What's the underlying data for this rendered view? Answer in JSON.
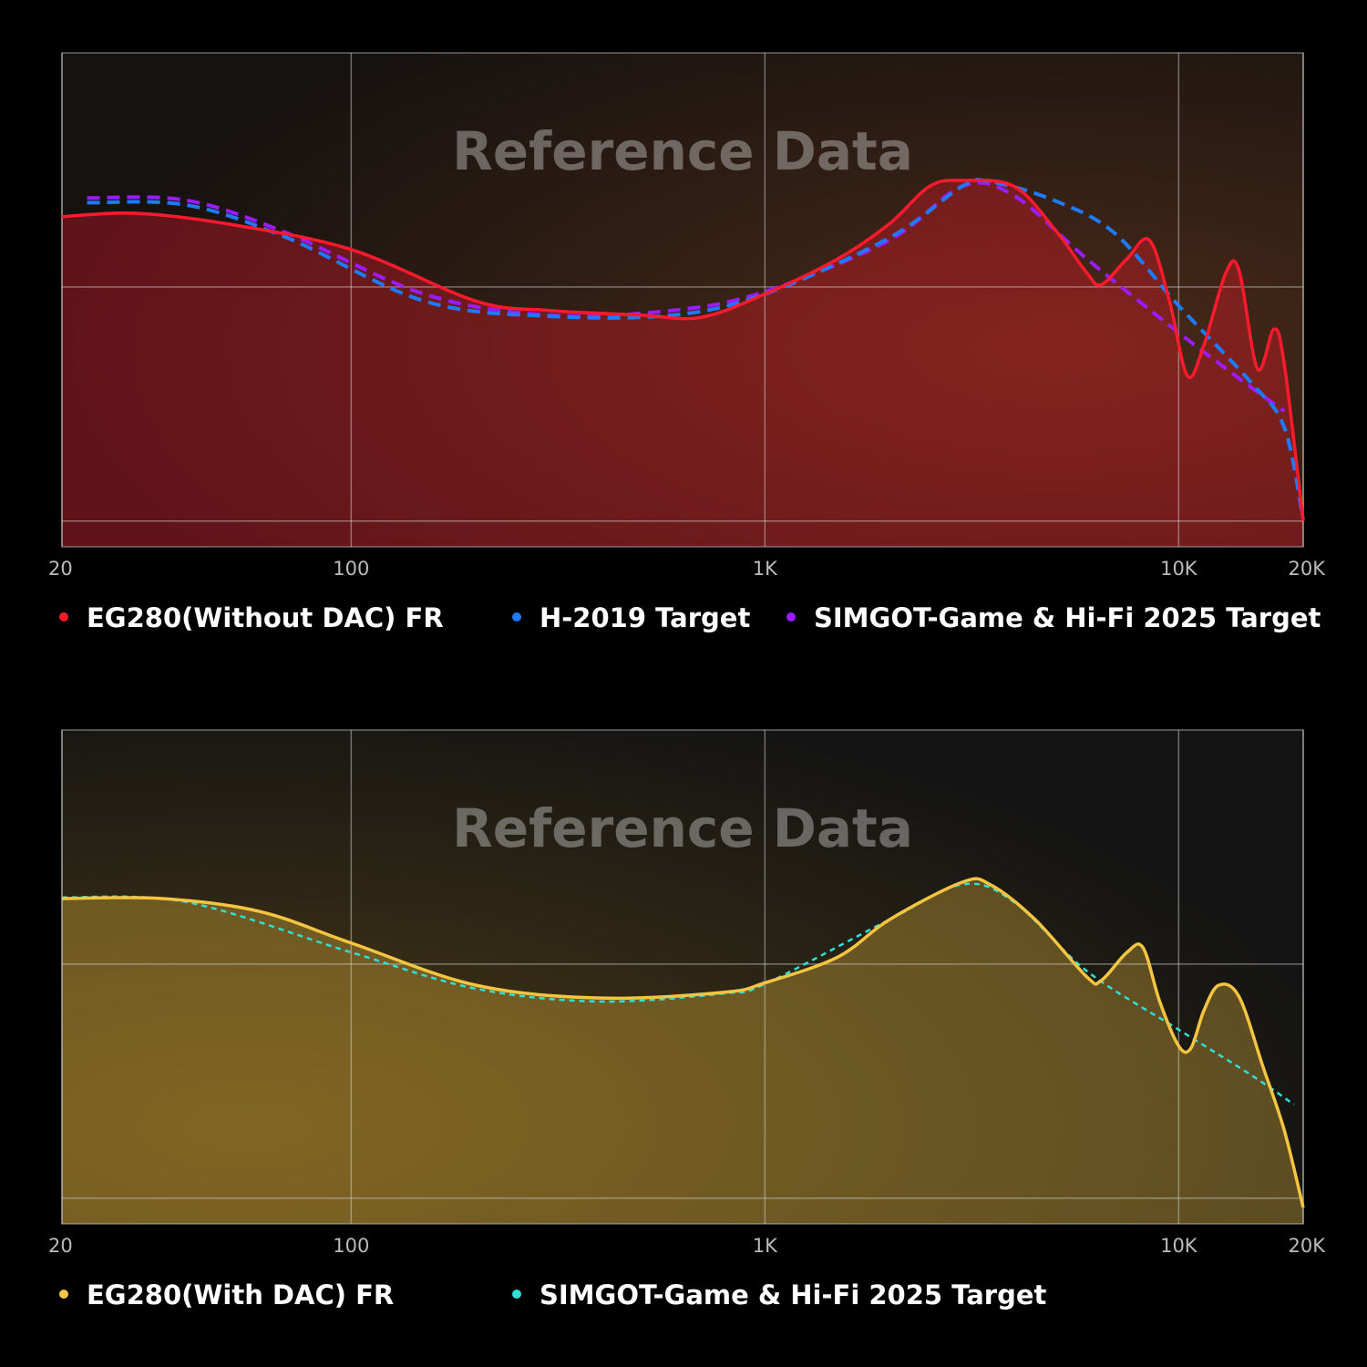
{
  "chart_data": [
    {
      "type": "line",
      "watermark": "Reference Data",
      "xscale": "log",
      "xlim": [
        20,
        20000
      ],
      "ylim": [
        -1.1,
        20
      ],
      "xticks": [
        20,
        100,
        {
          "value": 1000,
          "label": "1K"
        },
        {
          "value": 10000,
          "label": "10K"
        },
        {
          "value": 20000,
          "label": "20K"
        }
      ],
      "yticks": [
        0,
        10
      ],
      "grid": true,
      "series": [
        {
          "name": "EG280(Without DAC) FR",
          "color": "#ff1a2e",
          "dashed": false,
          "area": true,
          "x": [
            20,
            30,
            50,
            100,
            200,
            300,
            500,
            700,
            1000,
            1500,
            2000,
            2500,
            3000,
            4000,
            5000,
            6000,
            6500,
            7500,
            8500,
            9500,
            10500,
            11500,
            13000,
            14000,
            15500,
            17000,
            18000,
            20000
          ],
          "values": [
            13.0,
            13.15,
            12.7,
            11.6,
            9.4,
            9.0,
            8.8,
            8.7,
            9.7,
            11.2,
            12.7,
            14.3,
            14.55,
            14.3,
            12.5,
            10.6,
            10.1,
            11.2,
            12.0,
            9.4,
            6.2,
            7.5,
            10.6,
            10.7,
            6.5,
            8.2,
            6.7,
            0.0
          ]
        },
        {
          "name": "H-2019 Target",
          "color": "#1e7bff",
          "dashed": true,
          "area": false,
          "x": [
            23,
            40,
            70,
            150,
            300,
            600,
            1000,
            2000,
            3000,
            3500,
            5000,
            7000,
            10000,
            15000,
            18000,
            20000
          ],
          "values": [
            13.6,
            13.5,
            12.1,
            9.4,
            8.75,
            8.8,
            9.7,
            12.1,
            14.3,
            14.5,
            13.7,
            12.3,
            9.2,
            5.9,
            4.0,
            0.1
          ]
        },
        {
          "name": "SIMGOT-Game & Hi-Fi 2025 Target",
          "color": "#9b1cff",
          "dashed": true,
          "area": false,
          "x": [
            23,
            40,
            70,
            150,
            300,
            600,
            1000,
            2000,
            3000,
            4000,
            6000,
            10000,
            15000,
            18000
          ],
          "values": [
            13.8,
            13.7,
            12.3,
            9.7,
            8.8,
            9.0,
            9.8,
            12.0,
            14.3,
            13.9,
            11.2,
            8.05,
            5.7,
            4.7
          ]
        }
      ]
    },
    {
      "type": "line",
      "watermark": "Reference Data",
      "xscale": "log",
      "xlim": [
        20,
        20000
      ],
      "ylim": [
        -1.1,
        20
      ],
      "xticks": [
        20,
        100,
        {
          "value": 1000,
          "label": "1K"
        },
        {
          "value": 10000,
          "label": "10K"
        },
        {
          "value": 20000,
          "label": "20K"
        }
      ],
      "yticks": [
        0,
        10
      ],
      "grid": true,
      "series": [
        {
          "name": "EG280(With DAC) FR",
          "color": "#f5c542",
          "dashed": false,
          "area": true,
          "x": [
            20,
            35,
            60,
            100,
            200,
            400,
            800,
            1000,
            1500,
            2000,
            3000,
            3500,
            4500,
            6000,
            6500,
            7500,
            8200,
            9000,
            10000,
            10700,
            11500,
            12500,
            14000,
            16000,
            18000,
            20000
          ],
          "values": [
            12.8,
            12.8,
            12.25,
            10.9,
            9.1,
            8.55,
            8.8,
            9.2,
            10.3,
            11.9,
            13.5,
            13.4,
            11.9,
            9.45,
            9.3,
            10.5,
            10.7,
            8.4,
            6.5,
            6.4,
            8.0,
            9.1,
            8.6,
            5.6,
            2.9,
            -0.4
          ]
        },
        {
          "name": "SIMGOT-Game & Hi-Fi 2025 Target",
          "color": "#2de0d8",
          "dashed": true,
          "area": false,
          "x": [
            20,
            40,
            100,
            200,
            400,
            800,
            1000,
            2000,
            3000,
            4000,
            6000,
            10000,
            15000,
            19000
          ],
          "values": [
            12.85,
            12.65,
            10.5,
            8.95,
            8.4,
            8.75,
            9.15,
            11.9,
            13.4,
            12.65,
            9.7,
            7.2,
            5.25,
            4.0
          ]
        }
      ]
    }
  ]
}
